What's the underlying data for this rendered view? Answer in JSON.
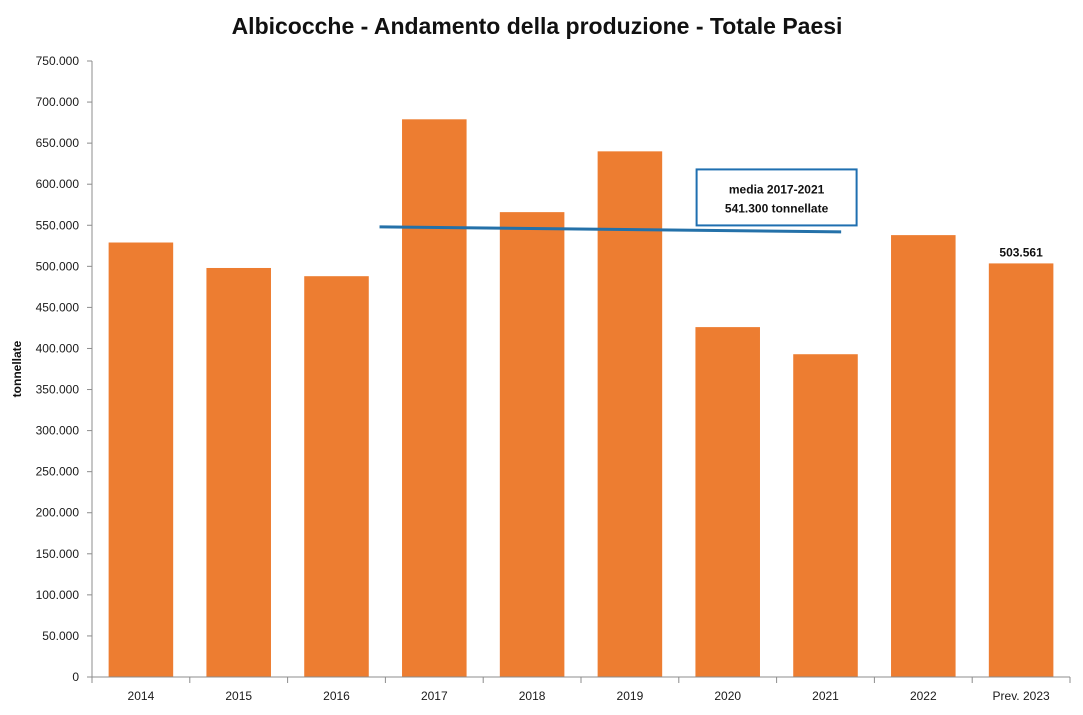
{
  "chart_data": {
    "type": "bar",
    "title": "Albicocche - Andamento della produzione - Totale Paesi",
    "ylabel": "tonnellate",
    "xlabel": "",
    "categories": [
      "2014",
      "2015",
      "2016",
      "2017",
      "2018",
      "2019",
      "2020",
      "2021",
      "2022",
      "Prev. 2023"
    ],
    "series": [
      {
        "values": [
          529000,
          498000,
          488000,
          679000,
          566000,
          640000,
          426000,
          393000,
          538000,
          503561
        ]
      }
    ],
    "ylim": [
      0,
      750000
    ],
    "ytick_values": [
      0,
      50000,
      100000,
      150000,
      200000,
      250000,
      300000,
      350000,
      400000,
      450000,
      500000,
      550000,
      600000,
      650000,
      700000,
      750000
    ],
    "ytick_labels": [
      "0",
      "50.000",
      "100.000",
      "150.000",
      "200.000",
      "250.000",
      "300.000",
      "350.000",
      "400.000",
      "450.000",
      "500.000",
      "550.000",
      "600.000",
      "650.000",
      "700.000",
      "750.000"
    ],
    "data_labels": [
      {
        "category": "Prev. 2023",
        "text": "503.561"
      }
    ],
    "reference_line": {
      "from_category": "2017",
      "to_category": "2021",
      "y_start": 548000,
      "y_end": 542000,
      "label_line1": "media 2017-2021",
      "label_line2": "541.300 tonnellate"
    },
    "colors": {
      "bar": "#ED7D31",
      "reference_line": "#2471A9",
      "annotation_border": "#1F6FB0",
      "axis": "#8C8C8C"
    },
    "grid": false,
    "legend": "none"
  }
}
